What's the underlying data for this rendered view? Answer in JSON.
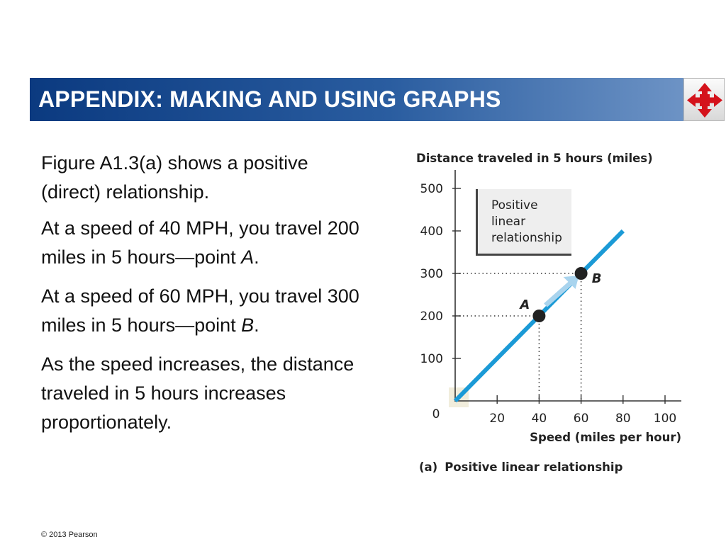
{
  "header": {
    "title": "APPENDIX: MAKING AND USING GRAPHS",
    "accent_color": "#0b3a80",
    "nav_icon": "four-way-arrows-icon"
  },
  "text": {
    "p1": "Figure A1.3(a) shows a positive (direct) relationship.",
    "p2_pre": "At a speed of 40 MPH, you travel 200 miles in 5 hours—point ",
    "p2_point": "A",
    "p2_post": ".",
    "p3_pre": "At a speed of 60 MPH, you travel 300 miles in 5 hours—point ",
    "p3_point": "B",
    "p3_post": ".",
    "p4": "As the speed increases, the distance traveled in 5 hours increases proportionately."
  },
  "footer": {
    "copyright": "© 2013 Pearson"
  },
  "chart_data": {
    "type": "line",
    "ylabel": "Distance traveled in 5 hours (miles)",
    "xlabel": "Speed (miles per hour)",
    "caption_tag": "(a)",
    "caption": "Positive linear relationship",
    "annotation": "Positive linear relationship",
    "x_ticks": [
      20,
      40,
      60,
      80,
      100
    ],
    "y_ticks": [
      100,
      200,
      300,
      400,
      500
    ],
    "origin_label": "0",
    "xlim": [
      0,
      100
    ],
    "ylim": [
      0,
      500
    ],
    "series": [
      {
        "x": [
          0,
          80
        ],
        "y": [
          0,
          400
        ],
        "color": "#1b9ad6"
      }
    ],
    "points": [
      {
        "label": "A",
        "x": 40,
        "y": 200
      },
      {
        "label": "B",
        "x": 60,
        "y": 300
      }
    ],
    "line_color": "#1b9ad6",
    "arrow_color": "#a9d4ee"
  }
}
